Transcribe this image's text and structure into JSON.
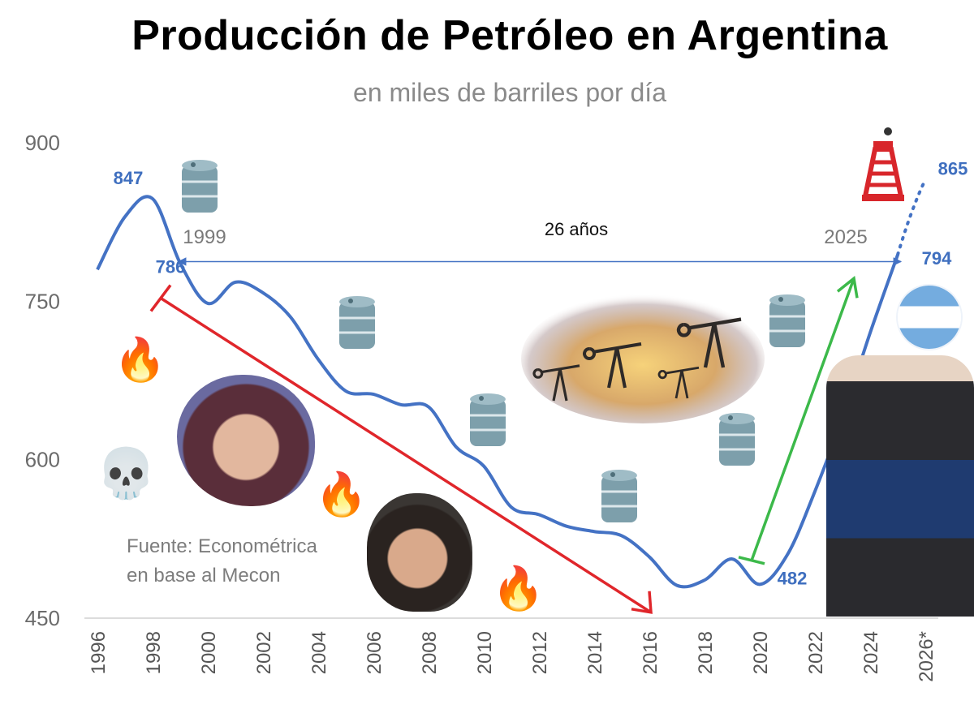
{
  "title": "Producción de Petróleo en Argentina",
  "subtitle": "en miles de barriles por día",
  "source": "Fuente: Econométrica\nen base al Mecon",
  "colors": {
    "series": "#4472c4",
    "decline": "#e0262b",
    "rise": "#3cb94a",
    "span": "#4472c4"
  },
  "icons": [
    "oil-barrel-icon",
    "fire-icon",
    "skull-icon",
    "oil-rig-icon",
    "argentina-flag-icon"
  ],
  "chart_data": {
    "type": "line",
    "title": "Producción de Petróleo en Argentina",
    "subtitle": "en miles de barriles por día",
    "ylim": [
      450,
      900
    ],
    "yticks": [
      450,
      600,
      750,
      900
    ],
    "xticks": [
      "1996",
      "1998",
      "2000",
      "2002",
      "2004",
      "2006",
      "2008",
      "2010",
      "2012",
      "2014",
      "2016",
      "2018",
      "2020",
      "2022",
      "2024",
      "2026*"
    ],
    "series": [
      {
        "x": [
          1996,
          1997,
          1998,
          1999,
          2000,
          2001,
          2002,
          2003,
          2004,
          2005,
          2006,
          2007,
          2008,
          2009,
          2010,
          2011,
          2012,
          2013,
          2014,
          2015,
          2016,
          2017,
          2018,
          2019,
          2020,
          2021,
          2022,
          2023,
          2024,
          2025
        ],
        "values": [
          780,
          830,
          847,
          786,
          748,
          768,
          758,
          735,
          695,
          665,
          662,
          652,
          650,
          612,
          594,
          555,
          548,
          537,
          532,
          528,
          508,
          481,
          486,
          506,
          482,
          510,
          570,
          640,
          720,
          794
        ]
      },
      {
        "x": [
          2025,
          2026
        ],
        "values": [
          794,
          865
        ],
        "style": "dotted",
        "projection": true
      }
    ],
    "data_labels": [
      {
        "x": 1998,
        "y": 847,
        "text": "847"
      },
      {
        "x": 1999,
        "y": 786,
        "text": "786"
      },
      {
        "x": 2020,
        "y": 482,
        "text": "482"
      },
      {
        "x": 2025,
        "y": 794,
        "text": "794"
      },
      {
        "x": 2026,
        "y": 865,
        "text": "865"
      }
    ],
    "annotations": [
      {
        "type": "span-arrow",
        "from": 1999,
        "to": 2025,
        "y": 786,
        "label": "26 años",
        "from_label": "1999",
        "to_label": "2025"
      },
      {
        "type": "arrow",
        "from": [
          1998,
          756
        ],
        "to": [
          2016,
          454
        ],
        "color": "decline"
      },
      {
        "type": "arrow",
        "from": [
          2019,
          520
        ],
        "to": [
          2023,
          770
        ],
        "color": "rise"
      }
    ]
  }
}
